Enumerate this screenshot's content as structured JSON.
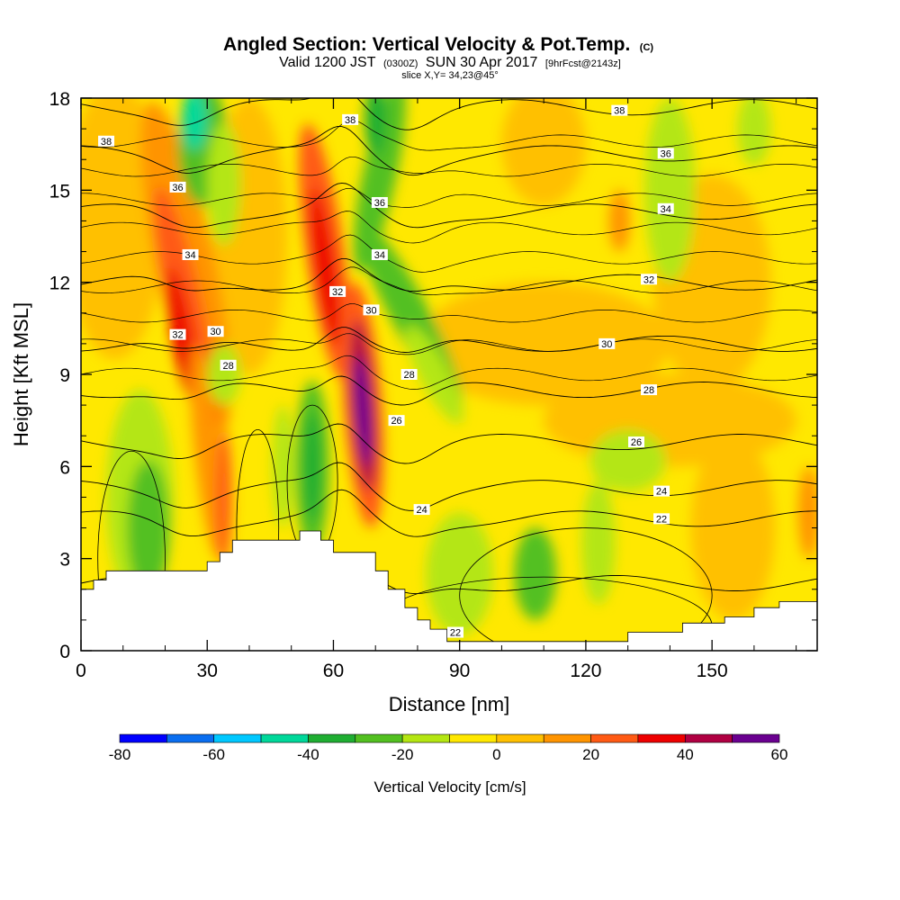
{
  "chart_data": {
    "type": "heatmap",
    "title": "Angled Section: Vertical Velocity & Pot.Temp.",
    "title_unit": "(C)",
    "subtitle_parts": [
      "Valid 1200 JST",
      "(0300Z)",
      "SUN 30 Apr 2017",
      "[9hrFcst@2143z]"
    ],
    "slice_label": "slice X,Y= 34,23@45°",
    "xlabel": "Distance [nm]",
    "ylabel": "Height [Kft MSL]",
    "xlim": [
      0,
      175
    ],
    "ylim": [
      0,
      18
    ],
    "x_ticks": [
      0,
      30,
      60,
      90,
      120,
      150
    ],
    "y_ticks": [
      0,
      3,
      6,
      9,
      12,
      15,
      18
    ],
    "colorbar": {
      "title": "Vertical Velocity [cm/s]",
      "levels": [
        -80,
        -70,
        -60,
        -50,
        -40,
        -30,
        -20,
        -10,
        0,
        10,
        20,
        30,
        40,
        50,
        60
      ],
      "tick_labels": [
        -80,
        -60,
        -40,
        -20,
        0,
        20,
        40,
        60
      ],
      "colors": [
        "#0000ff",
        "#0a6ef0",
        "#00c8ff",
        "#00d89a",
        "#1fae32",
        "#52c020",
        "#b4e612",
        "#ffe800",
        "#ffc000",
        "#ff9400",
        "#ff5a14",
        "#ee0000",
        "#b00042",
        "#6a0090"
      ]
    },
    "vertical_velocity_features": [
      {
        "x": 25,
        "y": 11,
        "value": 35
      },
      {
        "x": 58,
        "y": 12.5,
        "value": 38
      },
      {
        "x": 67,
        "y": 8,
        "value": 60
      },
      {
        "x": 55,
        "y": 6,
        "value": -35
      },
      {
        "x": 28,
        "y": 17,
        "value": -45
      },
      {
        "x": 72,
        "y": 15,
        "value": -35
      },
      {
        "x": 80,
        "y": 10,
        "value": -30
      },
      {
        "x": 15,
        "y": 4,
        "value": -25
      },
      {
        "x": 110,
        "y": 3,
        "value": -15
      },
      {
        "x": 140,
        "y": 15,
        "value": -15
      }
    ],
    "theta_contour_labels": [
      {
        "text": "38",
        "x": 6,
        "y": 16.6
      },
      {
        "text": "36",
        "x": 23,
        "y": 15.1
      },
      {
        "text": "34",
        "x": 26,
        "y": 12.9
      },
      {
        "text": "32",
        "x": 23,
        "y": 10.3
      },
      {
        "text": "30",
        "x": 32,
        "y": 10.4
      },
      {
        "text": "28",
        "x": 35,
        "y": 9.3
      },
      {
        "text": "38",
        "x": 64,
        "y": 17.3
      },
      {
        "text": "36",
        "x": 71,
        "y": 14.6
      },
      {
        "text": "34",
        "x": 71,
        "y": 12.9
      },
      {
        "text": "32",
        "x": 61,
        "y": 11.7
      },
      {
        "text": "30",
        "x": 69,
        "y": 11.1
      },
      {
        "text": "28",
        "x": 78,
        "y": 9.0
      },
      {
        "text": "26",
        "x": 75,
        "y": 7.5
      },
      {
        "text": "24",
        "x": 81,
        "y": 4.6
      },
      {
        "text": "22",
        "x": 89,
        "y": 0.6
      },
      {
        "text": "38",
        "x": 128,
        "y": 17.6
      },
      {
        "text": "36",
        "x": 139,
        "y": 16.2
      },
      {
        "text": "34",
        "x": 139,
        "y": 14.4
      },
      {
        "text": "32",
        "x": 135,
        "y": 12.1
      },
      {
        "text": "30",
        "x": 125,
        "y": 10.0
      },
      {
        "text": "28",
        "x": 135,
        "y": 8.5
      },
      {
        "text": "26",
        "x": 132,
        "y": 6.8
      },
      {
        "text": "24",
        "x": 138,
        "y": 5.2
      },
      {
        "text": "22",
        "x": 138,
        "y": 4.3
      }
    ],
    "terrain_profile": [
      [
        0,
        2.0
      ],
      [
        3,
        2.0
      ],
      [
        3,
        2.3
      ],
      [
        6,
        2.3
      ],
      [
        6,
        2.6
      ],
      [
        30,
        2.6
      ],
      [
        30,
        2.9
      ],
      [
        33,
        2.9
      ],
      [
        33,
        3.2
      ],
      [
        36,
        3.2
      ],
      [
        36,
        3.6
      ],
      [
        52,
        3.6
      ],
      [
        52,
        3.9
      ],
      [
        57,
        3.9
      ],
      [
        57,
        3.6
      ],
      [
        60,
        3.6
      ],
      [
        60,
        3.2
      ],
      [
        70,
        3.2
      ],
      [
        70,
        2.6
      ],
      [
        73,
        2.6
      ],
      [
        73,
        2.0
      ],
      [
        77,
        2.0
      ],
      [
        77,
        1.4
      ],
      [
        80,
        1.4
      ],
      [
        80,
        1.0
      ],
      [
        83,
        1.0
      ],
      [
        83,
        0.7
      ],
      [
        87,
        0.7
      ],
      [
        87,
        0.3
      ],
      [
        130,
        0.3
      ],
      [
        130,
        0.6
      ],
      [
        143,
        0.6
      ],
      [
        143,
        0.9
      ],
      [
        153,
        0.9
      ],
      [
        153,
        1.1
      ],
      [
        160,
        1.1
      ],
      [
        160,
        1.4
      ],
      [
        166,
        1.4
      ],
      [
        166,
        1.6
      ],
      [
        175,
        1.6
      ]
    ]
  }
}
